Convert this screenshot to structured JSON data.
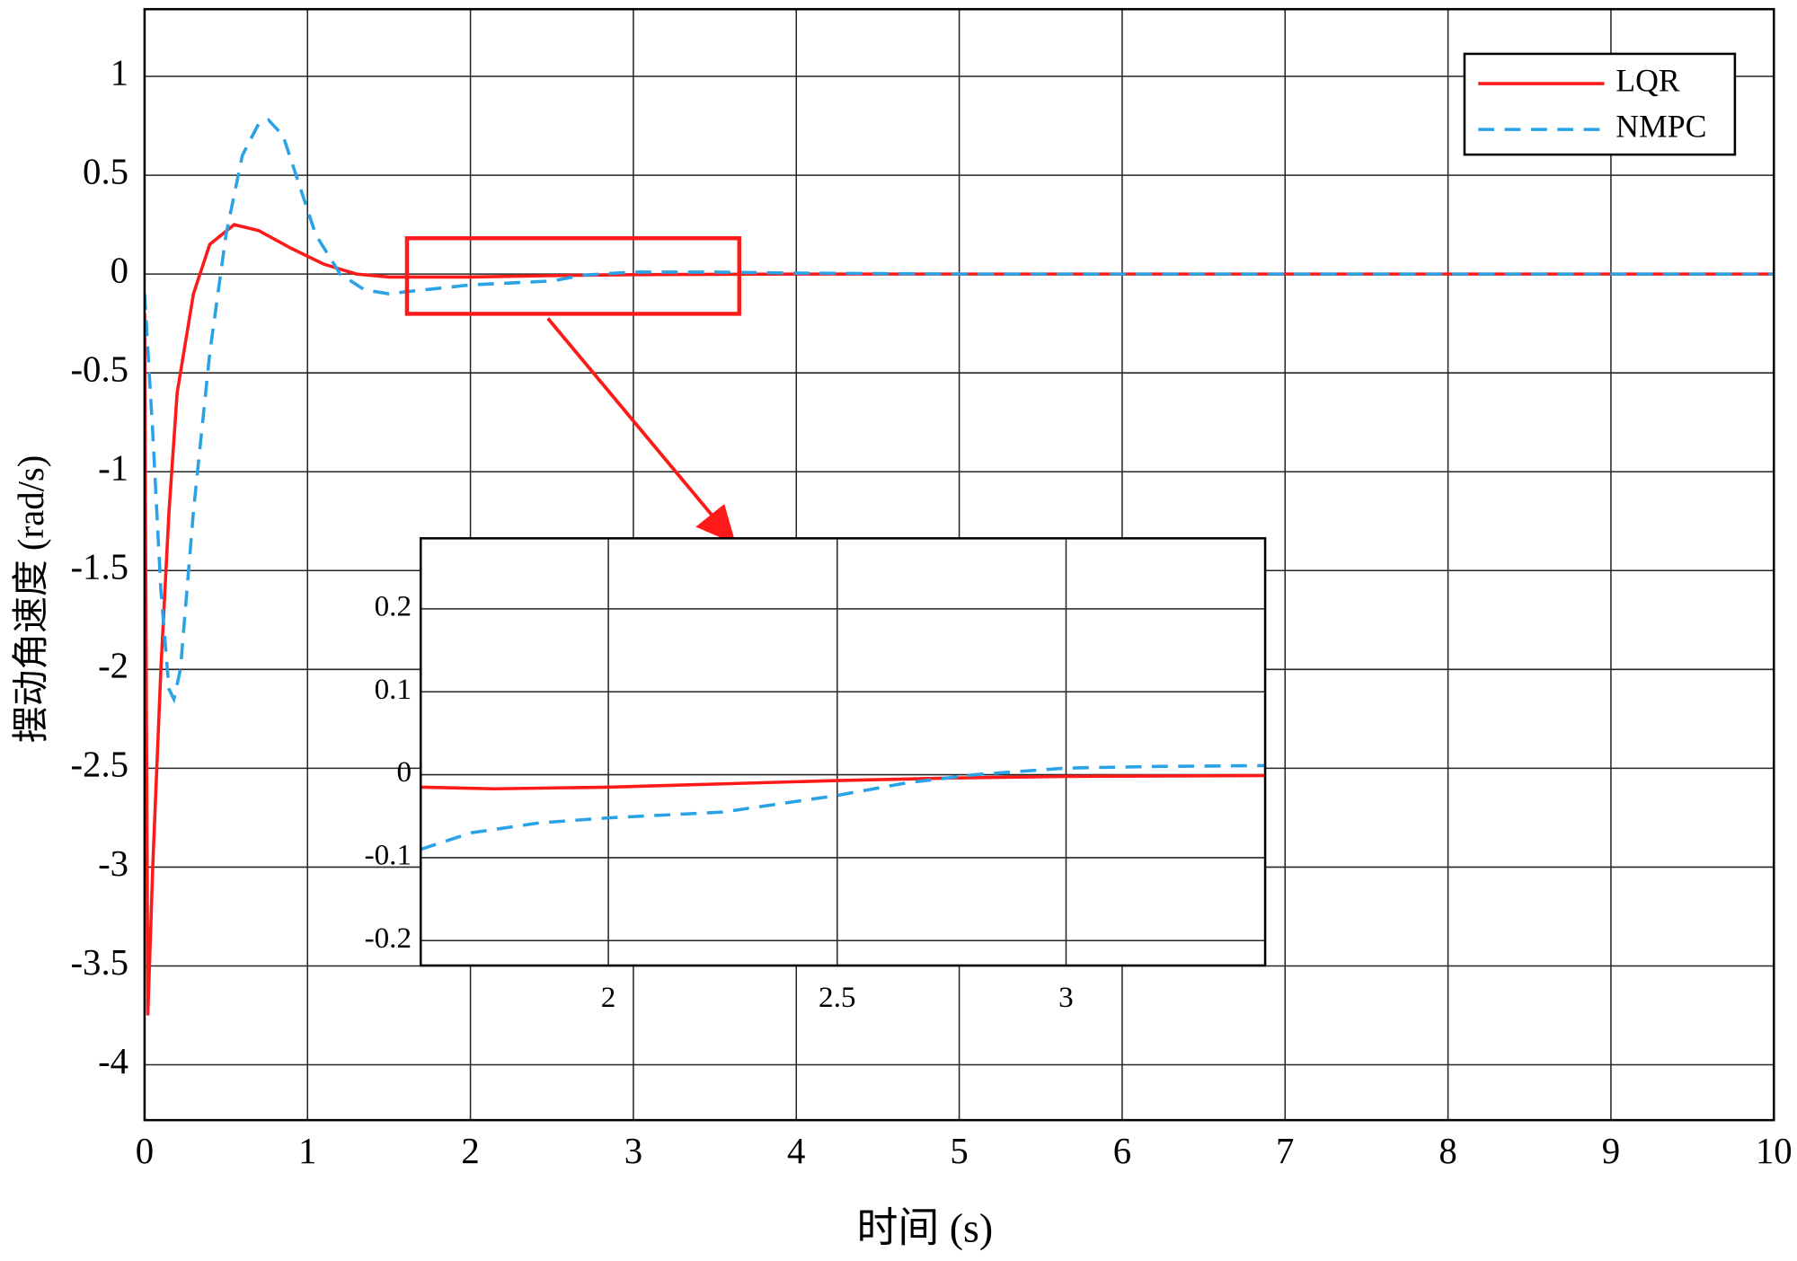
{
  "chart_data": [
    {
      "type": "line",
      "xlabel": "时间 (s)",
      "ylabel": "摆动角速度 (rad/s)",
      "xlim": [
        0,
        10
      ],
      "ylim": [
        -4.28,
        1.34
      ],
      "xticks": [
        0,
        1,
        2,
        3,
        4,
        5,
        6,
        7,
        8,
        9,
        10
      ],
      "yticks": [
        1,
        0.5,
        0,
        -0.5,
        -1,
        -1.5,
        -2,
        -2.5,
        -3,
        -3.5,
        -4
      ],
      "grid": true,
      "legend": "upper right",
      "series": [
        {
          "name": "LQR",
          "color": "#ff1a1a",
          "dash": false,
          "x": [
            0,
            0.02,
            0.05,
            0.1,
            0.15,
            0.2,
            0.3,
            0.4,
            0.55,
            0.7,
            0.9,
            1.1,
            1.3,
            1.5,
            2,
            2.5,
            3,
            4,
            10
          ],
          "values": [
            -0.2,
            -3.75,
            -3.0,
            -2.0,
            -1.2,
            -0.6,
            -0.1,
            0.15,
            0.25,
            0.22,
            0.13,
            0.05,
            0.0,
            -0.015,
            -0.015,
            -0.008,
            -0.003,
            0,
            0
          ]
        },
        {
          "name": "NMPC",
          "color": "#29a3e6",
          "dash": true,
          "x": [
            0,
            0.05,
            0.1,
            0.15,
            0.18,
            0.22,
            0.3,
            0.4,
            0.5,
            0.6,
            0.7,
            0.76,
            0.85,
            0.95,
            1.05,
            1.2,
            1.35,
            1.5,
            1.6,
            2,
            2.5,
            2.7,
            3,
            3.5,
            4,
            5,
            10
          ],
          "values": [
            -0.1,
            -0.8,
            -1.6,
            -2.1,
            -2.15,
            -2.0,
            -1.2,
            -0.4,
            0.2,
            0.6,
            0.76,
            0.78,
            0.7,
            0.45,
            0.2,
            0.0,
            -0.08,
            -0.1,
            -0.09,
            -0.055,
            -0.035,
            -0.005,
            0.01,
            0.01,
            0.005,
            0,
            0
          ]
        }
      ]
    },
    {
      "type": "line",
      "xlim": [
        1.59,
        3.435
      ],
      "ylim": [
        -0.23,
        0.285
      ],
      "xticks": [
        2,
        2.5,
        3
      ],
      "yticks": [
        0.2,
        0.1,
        0,
        -0.1,
        -0.2
      ],
      "grid": true,
      "series": [
        {
          "color": "#ff1a1a",
          "dash": false,
          "x": [
            1.59,
            1.75,
            2,
            2.25,
            2.5,
            2.75,
            3,
            3.435
          ],
          "values": [
            -0.015,
            -0.017,
            -0.015,
            -0.011,
            -0.007,
            -0.004,
            -0.002,
            -0.001
          ]
        },
        {
          "color": "#29a3e6",
          "dash": true,
          "x": [
            1.59,
            1.7,
            1.85,
            2,
            2.25,
            2.5,
            2.65,
            2.8,
            3,
            3.2,
            3.435
          ],
          "values": [
            -0.09,
            -0.07,
            -0.058,
            -0.052,
            -0.045,
            -0.025,
            -0.01,
            0.0,
            0.008,
            0.01,
            0.011
          ]
        }
      ]
    }
  ]
}
